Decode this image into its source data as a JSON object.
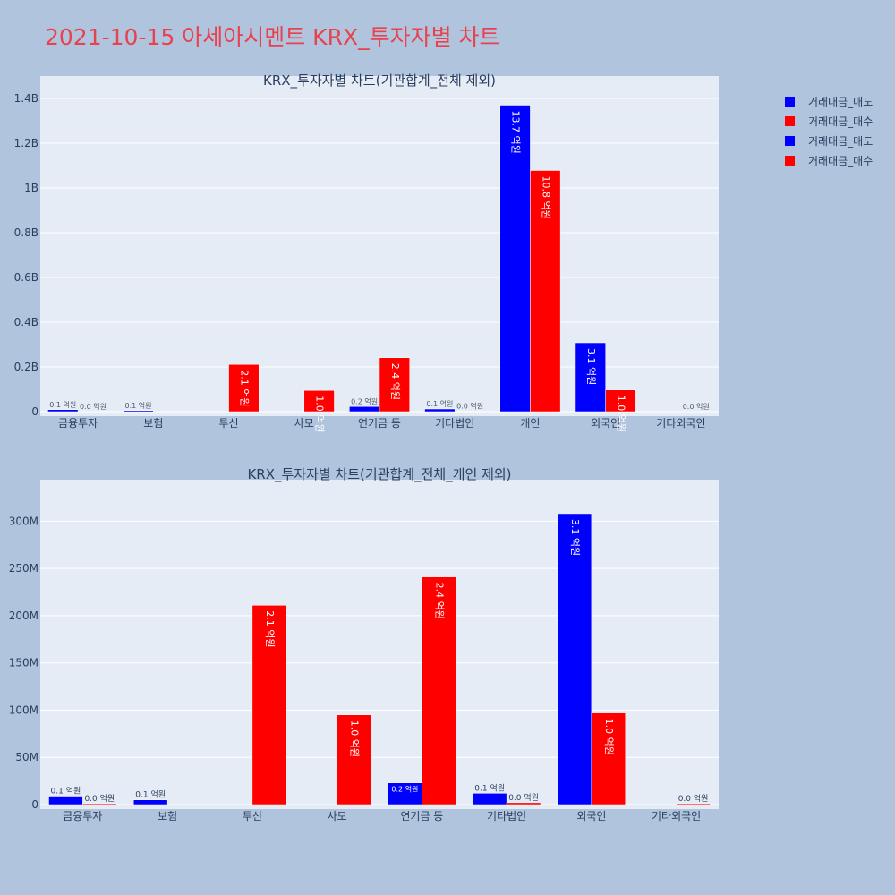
{
  "page_title": "2021-10-15 아세아시멘트 KRX_투자자별 차트",
  "colors": {
    "sell": "#0000ff",
    "buy": "#ff0000",
    "plot_bg": "#e5ecf6",
    "page_bg": "#b0c4de",
    "title": "#e8424f"
  },
  "legend": [
    {
      "label": "거래대금_매도",
      "color": "#0000ff"
    },
    {
      "label": "거래대금_매수",
      "color": "#ff0000"
    },
    {
      "label": "거래대금_매도",
      "color": "#0000ff"
    },
    {
      "label": "거래대금_매수",
      "color": "#ff0000"
    }
  ],
  "chart_data": [
    {
      "type": "bar",
      "title": "KRX_투자자별 차트(기관합계_전체 제외)",
      "categories": [
        "금융투자",
        "보험",
        "투신",
        "사모",
        "연기금 등",
        "기타법인",
        "개인",
        "외국인",
        "기타외국인"
      ],
      "ylim": [
        0,
        1400000000
      ],
      "yticks": [
        0,
        200000000,
        400000000,
        600000000,
        800000000,
        1000000000,
        1200000000,
        1400000000
      ],
      "ytick_labels": [
        "0",
        "0.2B",
        "0.4B",
        "0.6B",
        "0.8B",
        "1B",
        "1.2B",
        "1.4B"
      ],
      "grid": true,
      "legend_position": "top-right",
      "series": [
        {
          "name": "거래대금_매도",
          "color": "#0000ff",
          "values": [
            9000000,
            5000000,
            0,
            0,
            23000000,
            12000000,
            1370000000,
            308000000,
            0
          ],
          "labels": [
            "0.1 억원",
            "0.1 억원",
            "",
            "",
            "0.2 억원",
            "0.1 억원",
            "13.7 억원",
            "3.1 억원",
            ""
          ]
        },
        {
          "name": "거래대금_매수",
          "color": "#ff0000",
          "values": [
            1000000,
            0,
            211000000,
            95000000,
            241000000,
            2000000,
            1078000000,
            97000000,
            1000000
          ],
          "labels": [
            "0.0 억원",
            "",
            "2.1 억원",
            "1.0 억원",
            "2.4 억원",
            "0.0 억원",
            "10.8 억원",
            "1.0 억원",
            "0.0 억원"
          ]
        }
      ]
    },
    {
      "type": "bar",
      "title": "KRX_투자자별 차트(기관합계_전체_개인 제외)",
      "categories": [
        "금융투자",
        "보험",
        "투신",
        "사모",
        "연기금 등",
        "기타법인",
        "외국인",
        "기타외국인"
      ],
      "ylim": [
        0,
        325000000
      ],
      "yticks": [
        0,
        50000000,
        100000000,
        150000000,
        200000000,
        250000000,
        300000000
      ],
      "ytick_labels": [
        "0",
        "50M",
        "100M",
        "150M",
        "200M",
        "250M",
        "300M"
      ],
      "grid": true,
      "legend_position": "top-right",
      "series": [
        {
          "name": "거래대금_매도",
          "color": "#0000ff",
          "values": [
            9000000,
            5000000,
            0,
            0,
            23000000,
            12000000,
            308000000,
            0
          ],
          "labels": [
            "0.1 억원",
            "0.1 억원",
            "",
            "",
            "0.2 억원",
            "0.1 억원",
            "3.1 억원",
            ""
          ]
        },
        {
          "name": "거래대금_매수",
          "color": "#ff0000",
          "values": [
            1000000,
            0,
            211000000,
            95000000,
            241000000,
            2000000,
            97000000,
            1000000
          ],
          "labels": [
            "0.0 억원",
            "",
            "2.1 억원",
            "1.0 억원",
            "2.4 억원",
            "0.0 억원",
            "1.0 억원",
            "0.0 억원"
          ]
        }
      ]
    }
  ]
}
